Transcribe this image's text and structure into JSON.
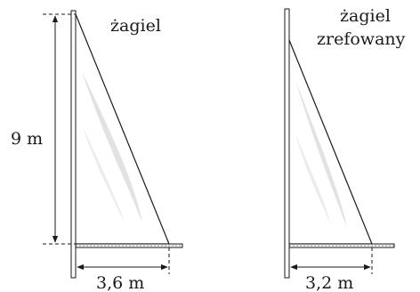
{
  "sails": [
    {
      "label_lines": [
        "żagiel"
      ],
      "height_label": "9 m",
      "width_label": "3,6 m"
    },
    {
      "label_lines": [
        "żagiel",
        "zrefowany"
      ],
      "width_label": "3,2 m"
    }
  ],
  "colors": {
    "line": "#1a1a1a",
    "shine": "#e2e2e2"
  }
}
